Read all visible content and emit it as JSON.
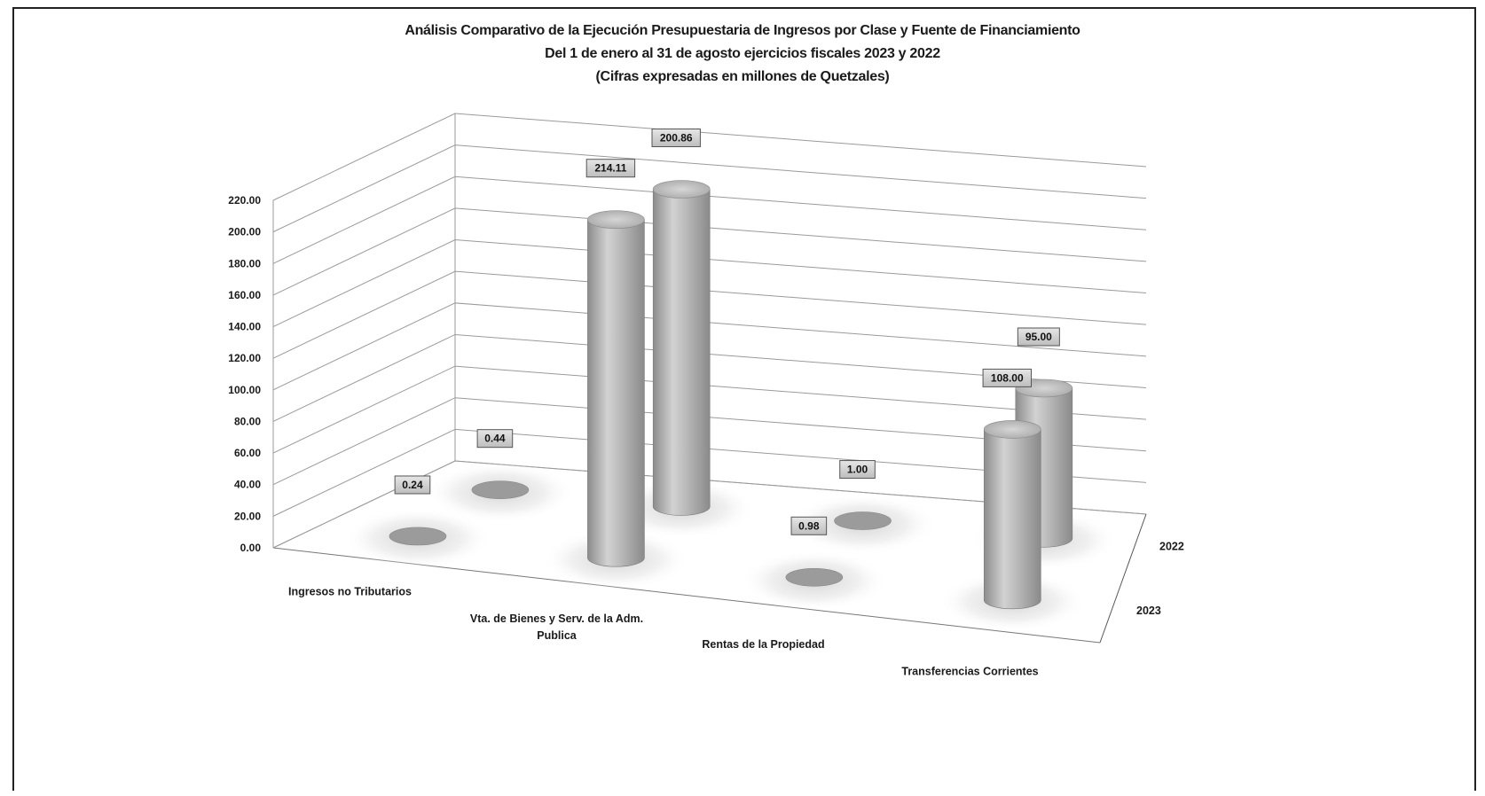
{
  "chart_data": {
    "type": "bar",
    "style": "3d-cylinder",
    "title": "Análisis Comparativo de la Ejecución Presupuestaria de Ingresos por Clase y Fuente de Financiamiento",
    "subtitle": "Del 1 de enero al 31 de agosto ejercicios fiscales 2023 y 2022",
    "subtitle2": "(Cifras expresadas en millones de Quetzales)",
    "categories": [
      "Ingresos no Tributarios",
      "Vta. de Bienes y Serv. de la Adm. Publica",
      "Rentas de la Propiedad",
      "Transferencias Corrientes"
    ],
    "category_lines": [
      [
        "Ingresos no Tributarios"
      ],
      [
        "Vta. de Bienes y Serv. de la Adm.",
        "Publica"
      ],
      [
        "Rentas de la Propiedad"
      ],
      [
        "Transferencias Corrientes"
      ]
    ],
    "series": [
      {
        "name": "2023",
        "values": [
          0.24,
          214.11,
          0.98,
          108.0
        ],
        "labels": [
          "0.24",
          "214.11",
          "0.98",
          "108.00"
        ]
      },
      {
        "name": "2022",
        "values": [
          0.44,
          200.86,
          1.0,
          95.0
        ],
        "labels": [
          "0.44",
          "200.86",
          "1.00",
          "95.00"
        ]
      }
    ],
    "yticks": [
      "0.00",
      "20.00",
      "40.00",
      "60.00",
      "80.00",
      "100.00",
      "120.00",
      "140.00",
      "160.00",
      "180.00",
      "200.00",
      "220.00"
    ],
    "ylim": [
      0,
      220
    ],
    "grid": true,
    "legend": "depth-axis"
  }
}
